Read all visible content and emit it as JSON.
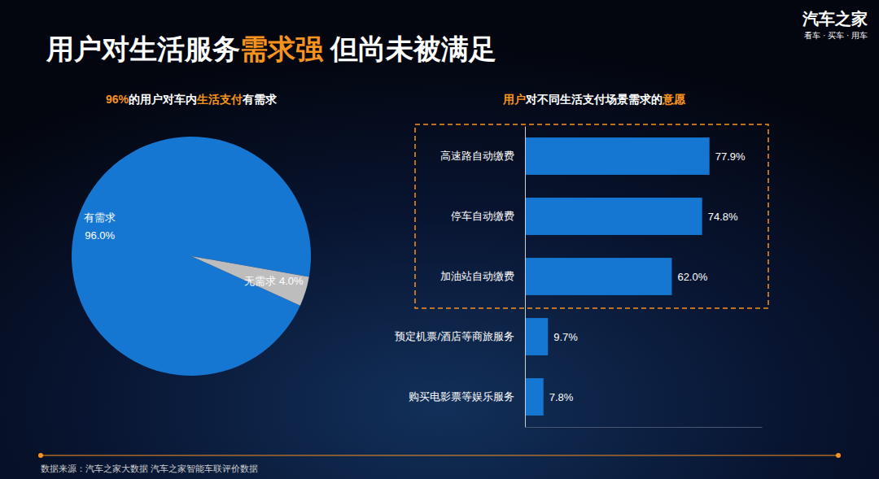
{
  "slide_title": [
    {
      "text": "用户对生活服务",
      "color": "#ffffff"
    },
    {
      "text": "需求强",
      "color": "#f7931e"
    },
    {
      "text": " 但尚未被满足",
      "color": "#ffffff"
    }
  ],
  "logo": {
    "name": "汽车之家",
    "slogan": "看车 · 买车 · 用车"
  },
  "source": "数据来源：汽车之家大数据 汽车之家智能车联评价数据",
  "chart_data": [
    {
      "type": "pie",
      "title": [
        {
          "text": "96%",
          "color": "#f7931e"
        },
        {
          "text": "的用户对车内",
          "color": "#ffffff"
        },
        {
          "text": "生活支付",
          "color": "#f7931e"
        },
        {
          "text": "有需求",
          "color": "#ffffff"
        }
      ],
      "categories": [
        "有需求",
        "无需求"
      ],
      "values": [
        96.0,
        4.0
      ],
      "value_labels": [
        "96.0%",
        "4.0%"
      ],
      "colors": [
        "#1677d2",
        "#bdbdbd"
      ],
      "data_labels": true
    },
    {
      "type": "bar",
      "orientation": "horizontal",
      "title": [
        {
          "text": "用户",
          "color": "#f7931e"
        },
        {
          "text": "对不同生活支付场景需求的",
          "color": "#ffffff"
        },
        {
          "text": "意愿",
          "color": "#f7931e"
        }
      ],
      "categories": [
        "高速路自动缴费",
        "停车自动缴费",
        "加油站自动缴费",
        "预定机票/酒店等商旅服务",
        "购买电影票等娱乐服务"
      ],
      "values": [
        77.9,
        74.8,
        62.0,
        9.7,
        7.8
      ],
      "value_labels": [
        "77.9%",
        "74.8%",
        "62.0%",
        "9.7%",
        "7.8%"
      ],
      "color": "#1677d2",
      "xlim": [
        0,
        100
      ],
      "tick_labels": "y",
      "data_labels": true
    }
  ]
}
